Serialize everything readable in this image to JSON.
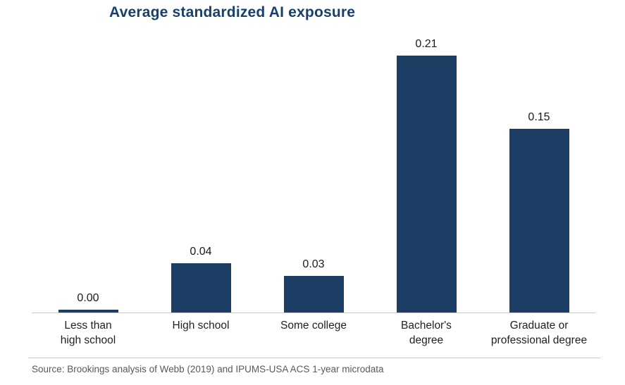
{
  "chart_data": {
    "type": "bar",
    "title": "Average standardized AI exposure",
    "categories": [
      [
        "Less than",
        "high school"
      ],
      [
        "High school"
      ],
      [
        "Some college"
      ],
      [
        "Bachelor's",
        "degree"
      ],
      [
        "Graduate or",
        "professional degree"
      ]
    ],
    "values": [
      0.0,
      0.04,
      0.03,
      0.21,
      0.15
    ],
    "value_labels": [
      "0.00",
      "0.04",
      "0.03",
      "0.21",
      "0.15"
    ],
    "xlabel": "",
    "ylabel": "",
    "ylim": [
      0,
      0.22
    ],
    "grid": false,
    "legend": false,
    "bar_color": "#1d3e64",
    "title_color": "#17406e"
  },
  "footer": {
    "source": "Source: Brookings analysis of Webb (2019) and IPUMS-USA ACS 1-year microdata"
  }
}
